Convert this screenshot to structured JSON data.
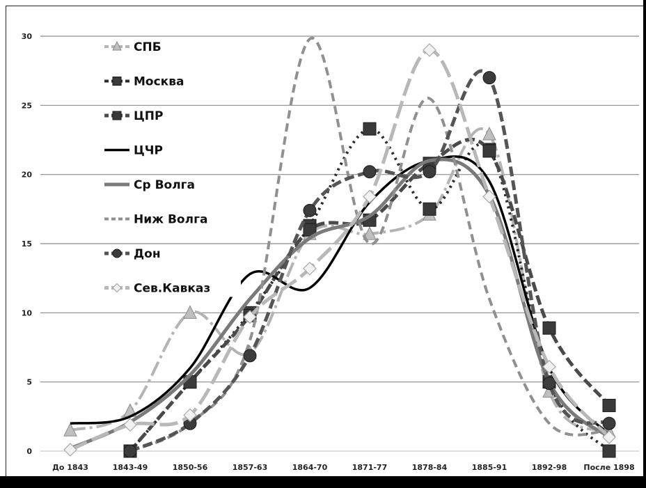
{
  "chart_data": {
    "type": "line",
    "title": "",
    "xlabel": "",
    "ylabel": "",
    "ylim": [
      0,
      30
    ],
    "yticks": [
      0,
      5,
      10,
      15,
      20,
      25,
      30
    ],
    "grid": true,
    "legend_position": "top-left",
    "smooth": true,
    "categories": [
      "До 1843",
      "1843-49",
      "1850-56",
      "1857-63",
      "1864-70",
      "1871-77",
      "1878-84",
      "1885-91",
      "1892-98",
      "После 1898"
    ],
    "series": [
      {
        "name": "СПБ",
        "values": [
          1.5,
          2.9,
          10,
          7.1,
          15.7,
          15.7,
          17.1,
          22.9,
          4.3,
          1.4
        ],
        "color": "#b4b4b4",
        "dash": "22,6,4,6",
        "width": 4,
        "marker": "triangle"
      },
      {
        "name": "Москва",
        "values": [
          null,
          0,
          5,
          10,
          16.3,
          23.3,
          17.5,
          21.8,
          5.0,
          0
        ],
        "color": "#2b2b2b",
        "dash": "3,6",
        "width": 4,
        "marker": "square"
      },
      {
        "name": "ЦПР",
        "values": [
          null,
          0,
          5,
          9.8,
          16.0,
          16.7,
          20.8,
          21.7,
          8.9,
          3.3
        ],
        "color": "#4a4a4a",
        "dash": "14,6",
        "width": 5,
        "marker": "square"
      },
      {
        "name": "ЦЧР",
        "values": [
          2.0,
          2.5,
          6.0,
          12.8,
          11.8,
          18.0,
          21.0,
          19.5,
          6.0,
          1.2
        ],
        "color": "#000000",
        "dash": "",
        "width": 3.5,
        "marker": "none"
      },
      {
        "name": "Ср Волга",
        "values": [
          0.2,
          2.1,
          5.5,
          11.0,
          15.4,
          17.0,
          21.0,
          18.5,
          5.0,
          1.0
        ],
        "color": "#7a7a7a",
        "dash": "",
        "width": 5,
        "marker": "none"
      },
      {
        "name": "Ниж Волга",
        "values": [
          null,
          0,
          2.0,
          8.0,
          29.8,
          15.0,
          25.5,
          11.0,
          2.0,
          1.5
        ],
        "color": "#909090",
        "dash": "12,7",
        "width": 4,
        "marker": "none"
      },
      {
        "name": "Дон",
        "values": [
          null,
          0,
          2.0,
          6.9,
          17.4,
          20.2,
          20.2,
          27.0,
          4.9,
          2.0
        ],
        "color": "#555555",
        "dash": "14,6",
        "width": 5,
        "marker": "circle"
      },
      {
        "name": "Сев.Кавказ",
        "values": [
          0.1,
          1.9,
          2.6,
          9.7,
          13.2,
          18.4,
          29.0,
          18.4,
          6.1,
          1.0
        ],
        "color": "#b8b8b8",
        "dash": "26,8",
        "width": 5,
        "marker": "diamond"
      }
    ]
  }
}
